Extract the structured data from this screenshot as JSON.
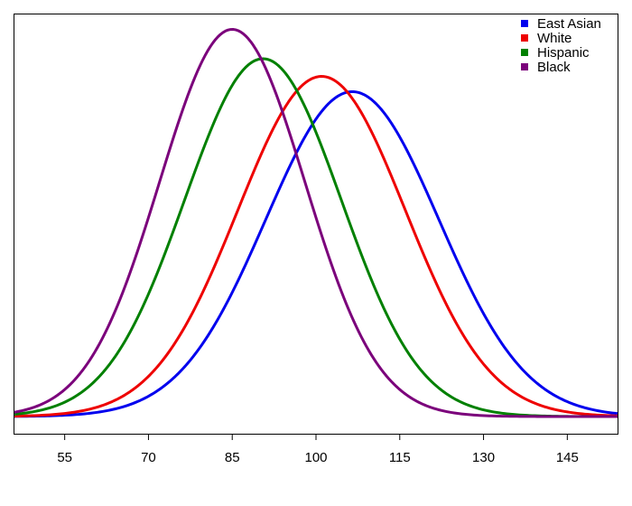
{
  "chart_data": {
    "type": "line",
    "title": "",
    "xlabel": "",
    "ylabel": "",
    "xlim": [
      46,
      154
    ],
    "ylim": [
      0,
      1.0
    ],
    "x_ticks": [
      55,
      70,
      85,
      100,
      115,
      130,
      145
    ],
    "x_tick_labels": [
      "55",
      "70",
      "85",
      "100",
      "115",
      "130",
      "145"
    ],
    "grid": false,
    "legend_position": "top-right",
    "series": [
      {
        "name": "East Asian",
        "color": "#0000ee",
        "mean": 106.5,
        "sd": 15.5,
        "peak": 0.808
      },
      {
        "name": "White",
        "color": "#ee0000",
        "mean": 101,
        "sd": 15,
        "peak": 0.846
      },
      {
        "name": "Hispanic",
        "color": "#008000",
        "mean": 90.5,
        "sd": 14,
        "peak": 0.89
      },
      {
        "name": "Black",
        "color": "#7b007b",
        "mean": 85,
        "sd": 13,
        "peak": 0.963
      }
    ]
  }
}
